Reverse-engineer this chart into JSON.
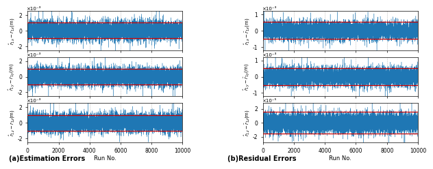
{
  "n_runs": 10000,
  "seed": 42,
  "left_panels": [
    {
      "ylabel": "$\\hat{r}_{1x} - r_{1x}$(m)",
      "scale_label": "×10⁻³",
      "std": 0.0006,
      "ylim": [
        -0.0025,
        0.0025
      ],
      "yticks": [
        -0.002,
        0,
        0.002
      ],
      "ytick_labels": [
        "-2",
        "0",
        "2"
      ],
      "red_line": 0.001,
      "show_xlabel": false
    },
    {
      "ylabel": "$\\hat{r}_{1y} - r_{1y}$(m)",
      "scale_label": "×10⁻³",
      "std": 0.0006,
      "ylim": [
        -0.0025,
        0.0025
      ],
      "yticks": [
        -0.002,
        0,
        0.002
      ],
      "ytick_labels": [
        "-2",
        "0",
        "2"
      ],
      "red_line": 0.001,
      "show_xlabel": false
    },
    {
      "ylabel": "$\\hat{r}_{1z} - r_{1z}$(m)",
      "scale_label": "×10⁻³",
      "std": 0.0006,
      "ylim": [
        -0.0025,
        0.0025
      ],
      "yticks": [
        -0.002,
        0,
        0.002
      ],
      "ytick_labels": [
        "-2",
        "0",
        "2"
      ],
      "red_line": 0.001,
      "show_xlabel": true
    }
  ],
  "right_panels": [
    {
      "ylabel": "$\\hat{r}_{1x} - \\bar{r}_{1x}$(m)",
      "scale_label": "×10⁻³",
      "std": 0.00028,
      "ylim": [
        -0.0012,
        0.0012
      ],
      "yticks": [
        -0.001,
        0,
        0.001
      ],
      "ytick_labels": [
        "-1",
        "0",
        "1"
      ],
      "red_line": 0.00052,
      "show_xlabel": false
    },
    {
      "ylabel": "$\\hat{r}_{1y} - \\bar{r}_{1y}$(m)",
      "scale_label": "×10⁻³",
      "std": 0.00028,
      "ylim": [
        -0.0012,
        0.0012
      ],
      "yticks": [
        -0.001,
        0,
        0.001
      ],
      "ytick_labels": [
        "-1",
        "0",
        "1"
      ],
      "red_line": 0.00052,
      "show_xlabel": false
    },
    {
      "ylabel": "$\\hat{r}_{1z} - \\bar{r}_{1z}$(m)",
      "scale_label": "×10⁻⁵",
      "std": 7e-06,
      "ylim": [
        -2.8e-05,
        2.8e-05
      ],
      "yticks": [
        -2e-05,
        0,
        2e-05
      ],
      "ytick_labels": [
        "-2",
        "0",
        "2"
      ],
      "red_line": 1.6e-05,
      "show_xlabel": true
    }
  ],
  "left_title": "(a)Estimation Errors",
  "right_title": "(b)Residual Errors",
  "line_color": "#1f77b4",
  "red_color": "#cc0000",
  "xticks": [
    0,
    2000,
    4000,
    6000,
    8000,
    10000
  ],
  "xtick_labels": [
    "0",
    "2000",
    "4000",
    "6000",
    "8000",
    "10000"
  ]
}
